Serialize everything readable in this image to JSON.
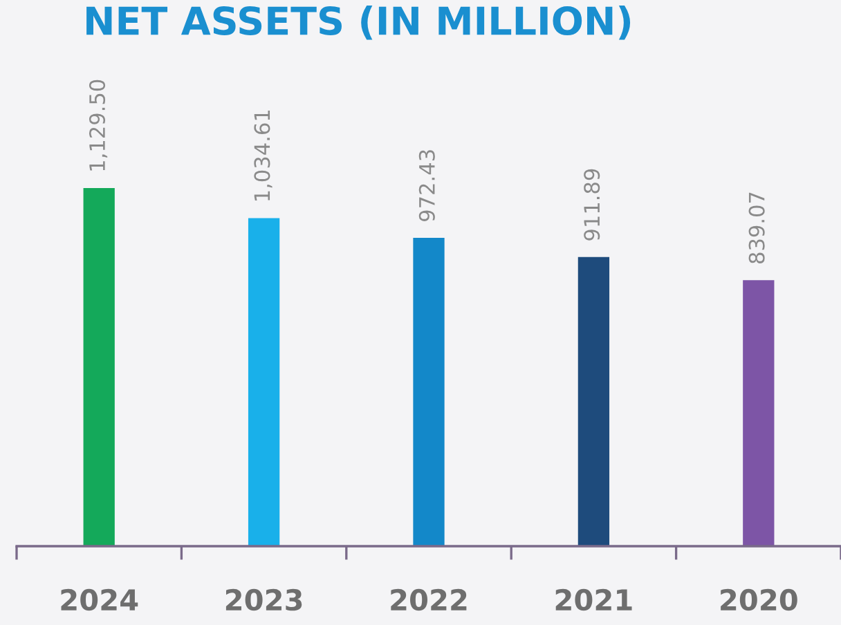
{
  "chart_data": {
    "type": "bar",
    "title": "NET ASSETS (IN MILLION)",
    "categories": [
      "2024",
      "2023",
      "2022",
      "2021",
      "2020"
    ],
    "values": [
      1129.5,
      1034.61,
      972.43,
      911.89,
      839.07
    ],
    "colors": [
      "#14a95a",
      "#19b0ea",
      "#1388c9",
      "#1e4b7c",
      "#7d55a6"
    ],
    "value_labels": [
      "1,129.50",
      "1,034.61",
      "972.43",
      "911.89",
      "839.07"
    ],
    "grid": false,
    "legend": false
  }
}
